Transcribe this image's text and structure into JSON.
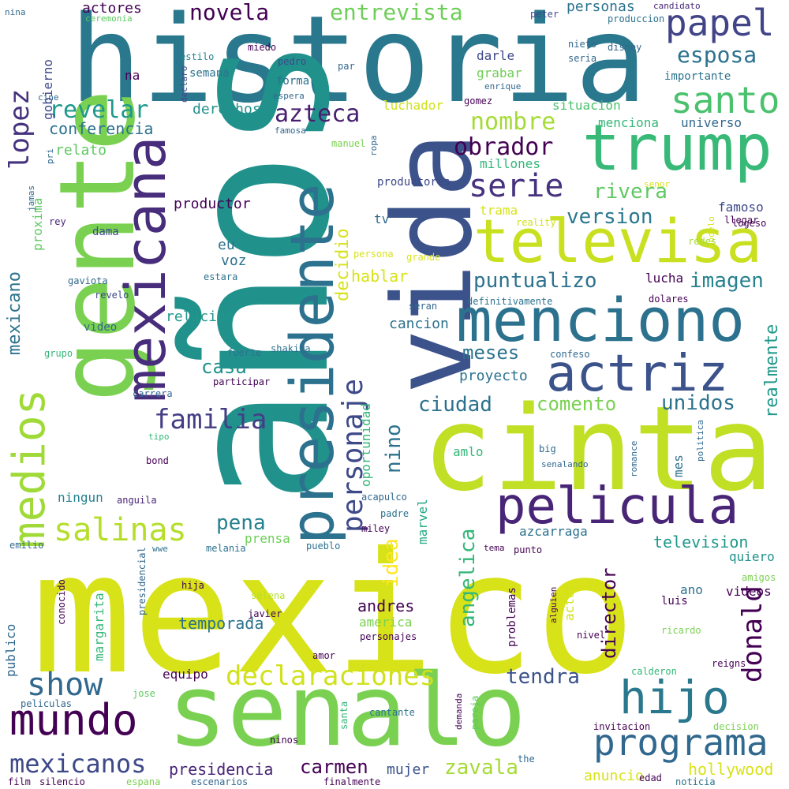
{
  "words": [
    {
      "text": "historia",
      "color": "#2a788e"
    },
    {
      "text": "años",
      "color": "#21918c"
    },
    {
      "text": "mexico",
      "color": "#d8e219"
    },
    {
      "text": "cinta",
      "color": "#c0df25"
    },
    {
      "text": "vida",
      "color": "#3b528b"
    },
    {
      "text": "gente",
      "color": "#7ad151"
    },
    {
      "text": "senalo",
      "color": "#7ad151"
    },
    {
      "text": "presidente",
      "color": "#2c728e"
    },
    {
      "text": "mexicana",
      "color": "#472d7b"
    },
    {
      "text": "trump",
      "color": "#38b977"
    },
    {
      "text": "televisa",
      "color": "#c8e020"
    },
    {
      "text": "menciono",
      "color": "#2c728e"
    },
    {
      "text": "pelicula",
      "color": "#482576"
    },
    {
      "text": "actriz",
      "color": "#3b528b"
    },
    {
      "text": "medios",
      "color": "#a0da39"
    },
    {
      "text": "hijo",
      "color": "#2a788e"
    },
    {
      "text": "mundo",
      "color": "#440154"
    },
    {
      "text": "programa",
      "color": "#31688e"
    },
    {
      "text": "salinas",
      "color": "#b5de2b"
    },
    {
      "text": "show",
      "color": "#31688e"
    },
    {
      "text": "santo",
      "color": "#4ac16d"
    },
    {
      "text": "papel",
      "color": "#414487"
    },
    {
      "text": "declaraciones",
      "color": "#d0e11c"
    },
    {
      "text": "personaje",
      "color": "#3e4989"
    },
    {
      "text": "serie",
      "color": "#46327e"
    },
    {
      "text": "lopez",
      "color": "#46327e"
    },
    {
      "text": "mexicanos",
      "color": "#3e4989"
    },
    {
      "text": "donald",
      "color": "#440154"
    },
    {
      "text": "familia",
      "color": "#433e85"
    },
    {
      "text": "azteca",
      "color": "#481f70"
    },
    {
      "text": "obrador",
      "color": "#440154"
    },
    {
      "text": "revelar",
      "color": "#1f988b"
    },
    {
      "text": "nombre",
      "color": "#a5db36"
    },
    {
      "text": "novela",
      "color": "#440154"
    },
    {
      "text": "entrevista",
      "color": "#6ece58"
    },
    {
      "text": "esposa",
      "color": "#2c728e"
    },
    {
      "text": "pena",
      "color": "#26818e"
    },
    {
      "text": "rivera",
      "color": "#5ec962"
    },
    {
      "text": "version",
      "color": "#2a788e"
    },
    {
      "text": "imagen",
      "color": "#26828e"
    },
    {
      "text": "puntualizo",
      "color": "#2c728e"
    },
    {
      "text": "mexicano",
      "color": "#2c728e"
    },
    {
      "text": "unidos",
      "color": "#2c728e"
    },
    {
      "text": "ciudad",
      "color": "#2c728e"
    },
    {
      "text": "comento",
      "color": "#7ad151"
    },
    {
      "text": "meses",
      "color": "#2c728e"
    },
    {
      "text": "casa",
      "color": "#21918c"
    },
    {
      "text": "tendra",
      "color": "#3b528b"
    },
    {
      "text": "carmen",
      "color": "#440154"
    },
    {
      "text": "zavala",
      "color": "#a5db36"
    },
    {
      "text": "director",
      "color": "#440154"
    },
    {
      "text": "angelica",
      "color": "#35b779"
    },
    {
      "text": "realmente",
      "color": "#1f988b"
    },
    {
      "text": "nino",
      "color": "#2c728e"
    },
    {
      "text": "idea",
      "color": "#fde725"
    },
    {
      "text": "decidio",
      "color": "#d8e219"
    },
    {
      "text": "conferencia",
      "color": "#2c728e"
    },
    {
      "text": "temporada",
      "color": "#2c728e"
    },
    {
      "text": "presidencia",
      "color": "#482576"
    },
    {
      "text": "andres",
      "color": "#440154"
    },
    {
      "text": "hablar",
      "color": "#d8e219"
    },
    {
      "text": "television",
      "color": "#1f988b"
    },
    {
      "text": "hollywood",
      "color": "#d8e219"
    },
    {
      "text": "mujer",
      "color": "#3b528b"
    },
    {
      "text": "anuncio",
      "color": "#d8e219"
    },
    {
      "text": "margarita",
      "color": "#35b779"
    },
    {
      "text": "productor",
      "color": "#440154"
    },
    {
      "text": "derechos",
      "color": "#21918c"
    },
    {
      "text": "relato",
      "color": "#5ec962"
    },
    {
      "text": "proxima",
      "color": "#5ec962"
    },
    {
      "text": "gobierno",
      "color": "#3e4989"
    },
    {
      "text": "actores",
      "color": "#440154"
    },
    {
      "text": "personas",
      "color": "#2c728e"
    },
    {
      "text": "luchador",
      "color": "#d0e11c"
    },
    {
      "text": "millones",
      "color": "#35b779"
    },
    {
      "text": "situacion",
      "color": "#4ac16d"
    },
    {
      "text": "menciona",
      "color": "#35b779"
    },
    {
      "text": "universo",
      "color": "#31688e"
    },
    {
      "text": "trama",
      "color": "#d8e219"
    },
    {
      "text": "famoso",
      "color": "#3e4989"
    },
    {
      "text": "proyecto",
      "color": "#2c728e"
    },
    {
      "text": "amlo",
      "color": "#35b779"
    },
    {
      "text": "oportunidad",
      "color": "#35b779"
    },
    {
      "text": "marvel",
      "color": "#22a884"
    },
    {
      "text": "azcarraga",
      "color": "#2c728e"
    },
    {
      "text": "quiero",
      "color": "#21918c"
    },
    {
      "text": "ano",
      "color": "#2c728e"
    },
    {
      "text": "actor",
      "color": "#d0e11c"
    },
    {
      "text": "problemas",
      "color": "#440154"
    },
    {
      "text": "america",
      "color": "#7ad151"
    },
    {
      "text": "publico",
      "color": "#31688e"
    },
    {
      "text": "equipo",
      "color": "#440154"
    },
    {
      "text": "ningun",
      "color": "#26828e"
    },
    {
      "text": "relacion",
      "color": "#1f988b"
    },
    {
      "text": "cancion",
      "color": "#2c728e"
    },
    {
      "text": "voz",
      "color": "#2c728e"
    },
    {
      "text": "eu",
      "color": "#2c728e"
    },
    {
      "text": "grabar",
      "color": "#6ece58"
    },
    {
      "text": "darle",
      "color": "#3e4989"
    },
    {
      "text": "prensa",
      "color": "#6ece58"
    },
    {
      "text": "lucha",
      "color": "#440154"
    },
    {
      "text": "videos",
      "color": "#440154"
    },
    {
      "text": "na",
      "color": "#440154"
    },
    {
      "text": "mes",
      "color": "#2c728e"
    },
    {
      "text": "luis",
      "color": "#440154"
    },
    {
      "text": "dama",
      "color": "#3e4989"
    },
    {
      "text": "tv",
      "color": "#31688e"
    },
    {
      "text": "semana",
      "color": "#2c728e"
    },
    {
      "text": "importante",
      "color": "#2c728e"
    },
    {
      "text": "productores",
      "color": "#3e4989"
    },
    {
      "text": "forma",
      "color": "#2c728e"
    },
    {
      "text": "gomez",
      "color": "#440154"
    },
    {
      "text": "peter",
      "color": "#3e4989"
    },
    {
      "text": "produccion",
      "color": "#2c728e"
    },
    {
      "text": "candidato",
      "color": "#482576"
    },
    {
      "text": "nina",
      "color": "#31688e"
    },
    {
      "text": "ceremonia",
      "color": "#5ec962"
    },
    {
      "text": "estilo",
      "color": "#26828e"
    },
    {
      "text": "miedo",
      "color": "#440154"
    },
    {
      "text": "declaro",
      "color": "#3e4989"
    },
    {
      "text": "pedro",
      "color": "#3e4989"
    },
    {
      "text": "par",
      "color": "#31688e"
    },
    {
      "text": "nieto",
      "color": "#31688e"
    },
    {
      "text": "seria",
      "color": "#31688e"
    },
    {
      "text": "disney",
      "color": "#31688e"
    },
    {
      "text": "enrique",
      "color": "#31688e"
    },
    {
      "text": "espera",
      "color": "#31688e"
    },
    {
      "text": "cine",
      "color": "#31688e"
    },
    {
      "text": "famosa",
      "color": "#31688e"
    },
    {
      "text": "manuel",
      "color": "#7ad151"
    },
    {
      "text": "ropa",
      "color": "#31688e"
    },
    {
      "text": "pri",
      "color": "#31688e"
    },
    {
      "text": "jamas",
      "color": "#31688e"
    },
    {
      "text": "rey",
      "color": "#482576"
    },
    {
      "text": "reality",
      "color": "#d0e11c"
    },
    {
      "text": "logeso",
      "color": "#440154"
    },
    {
      "text": "llegar",
      "color": "#440154"
    },
    {
      "text": "senor",
      "color": "#d8e219"
    },
    {
      "text": "modelo",
      "color": "#d8e219"
    },
    {
      "text": "redes",
      "color": "#a5db36"
    },
    {
      "text": "persona",
      "color": "#d8e219"
    },
    {
      "text": "grande",
      "color": "#d8e219"
    },
    {
      "text": "gaviota",
      "color": "#31688e"
    },
    {
      "text": "revelo",
      "color": "#3e4989"
    },
    {
      "text": "estara",
      "color": "#2c728e"
    },
    {
      "text": "seran",
      "color": "#31688e"
    },
    {
      "text": "definitivamente",
      "color": "#2c728e"
    },
    {
      "text": "dolares",
      "color": "#440154"
    },
    {
      "text": "video",
      "color": "#31688e"
    },
    {
      "text": "fuerte",
      "color": "#2c728e"
    },
    {
      "text": "grupo",
      "color": "#35b779"
    },
    {
      "text": "shakira",
      "color": "#2c728e"
    },
    {
      "text": "confeso",
      "color": "#31688e"
    },
    {
      "text": "participar",
      "color": "#440154"
    },
    {
      "text": "carrera",
      "color": "#31688e"
    },
    {
      "text": "tipo",
      "color": "#35b779"
    },
    {
      "text": "bond",
      "color": "#440154"
    },
    {
      "text": "big",
      "color": "#31688e"
    },
    {
      "text": "senalando",
      "color": "#31688e"
    },
    {
      "text": "politica",
      "color": "#31688e"
    },
    {
      "text": "romance",
      "color": "#31688e"
    },
    {
      "text": "anguila",
      "color": "#482576"
    },
    {
      "text": "acapulco",
      "color": "#31688e"
    },
    {
      "text": "padre",
      "color": "#2c728e"
    },
    {
      "text": "miley",
      "color": "#440154"
    },
    {
      "text": "emilio",
      "color": "#31688e"
    },
    {
      "text": "wwe",
      "color": "#2c728e"
    },
    {
      "text": "melania",
      "color": "#2c728e"
    },
    {
      "text": "pueblo",
      "color": "#2c728e"
    },
    {
      "text": "tema",
      "color": "#440154"
    },
    {
      "text": "punto",
      "color": "#440154"
    },
    {
      "text": "amigos",
      "color": "#7ad151"
    },
    {
      "text": "hija",
      "color": "#440154"
    },
    {
      "text": "selena",
      "color": "#b5de2b"
    },
    {
      "text": "presidencial",
      "color": "#31688e"
    },
    {
      "text": "conocido",
      "color": "#440154"
    },
    {
      "text": "javier",
      "color": "#440154"
    },
    {
      "text": "personajes",
      "color": "#440154"
    },
    {
      "text": "alguien",
      "color": "#440154"
    },
    {
      "text": "nivel",
      "color": "#440154"
    },
    {
      "text": "ricardo",
      "color": "#7ad151"
    },
    {
      "text": "amor",
      "color": "#440154"
    },
    {
      "text": "reigns",
      "color": "#440154"
    },
    {
      "text": "calderon",
      "color": "#35b779"
    },
    {
      "text": "peliculas",
      "color": "#31688e"
    },
    {
      "text": "jose",
      "color": "#5ec962"
    },
    {
      "text": "cantante",
      "color": "#2c728e"
    },
    {
      "text": "ninos",
      "color": "#440154"
    },
    {
      "text": "santa",
      "color": "#35b779"
    },
    {
      "text": "pareja",
      "color": "#5ec962"
    },
    {
      "text": "demanda",
      "color": "#440154"
    },
    {
      "text": "invitacion",
      "color": "#440154"
    },
    {
      "text": "decision",
      "color": "#7ad151"
    },
    {
      "text": "the",
      "color": "#31688e"
    },
    {
      "text": "film",
      "color": "#440154"
    },
    {
      "text": "silencio",
      "color": "#440154"
    },
    {
      "text": "espana",
      "color": "#7ad151"
    },
    {
      "text": "escenarios",
      "color": "#31688e"
    },
    {
      "text": "finalmente",
      "color": "#440154"
    },
    {
      "text": "edad",
      "color": "#440154"
    },
    {
      "text": "noticia",
      "color": "#2c728e"
    }
  ]
}
